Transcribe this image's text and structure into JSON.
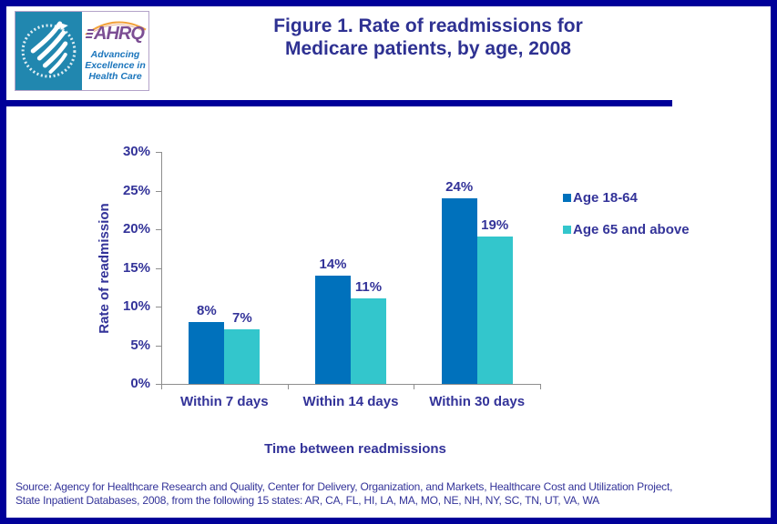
{
  "header": {
    "title_line1": "Figure 1. Rate of readmissions for",
    "title_line2": "Medicare patients, by age, 2008",
    "logo": {
      "acronym": "AHRQ",
      "tagline_line1": "Advancing",
      "tagline_line2": "Excellence in",
      "tagline_line3": "Health Care"
    }
  },
  "chart_data": {
    "type": "bar",
    "title": "Figure 1. Rate of readmissions for Medicare patients, by age, 2008",
    "categories": [
      "Within 7 days",
      "Within 14 days",
      "Within 30 days"
    ],
    "series": [
      {
        "name": "Age 18-64",
        "color": "#0071BC",
        "values": [
          8,
          14,
          24
        ]
      },
      {
        "name": "Age 65 and above",
        "color": "#33C6CC",
        "values": [
          7,
          11,
          19
        ]
      }
    ],
    "value_suffix": "%",
    "xlabel": "Time between readmissions",
    "ylabel": "Rate of readmission",
    "ylim": [
      0,
      30
    ],
    "ytick_step": 5,
    "grid": false,
    "legend_position": "right",
    "bar_value_labels": [
      "8%",
      "7%",
      "14%",
      "11%",
      "24%",
      "19%"
    ]
  },
  "source": {
    "line1": "Source: Agency for Healthcare Research and Quality, Center for Delivery, Organization, and Markets, Healthcare Cost and Utilization Project,",
    "line2": "State Inpatient Databases, 2008, from the following 15 states: AR, CA, FL, HI, LA, MA, MO, NE, NH, NY, SC, TN, UT, VA, WA"
  },
  "colors": {
    "frame_border": "#000099",
    "title_text": "#2E3192",
    "chart_text": "#333399",
    "axis_line": "#8E8E8E",
    "series_age_18_64": "#0071BC",
    "series_age_65_plus": "#33C6CC",
    "hhs_seal_blue": "#2187AF",
    "ahrq_purple": "#7C4E94",
    "tagline_blue": "#1B75BC",
    "arc_orange": "#F2A23C"
  }
}
